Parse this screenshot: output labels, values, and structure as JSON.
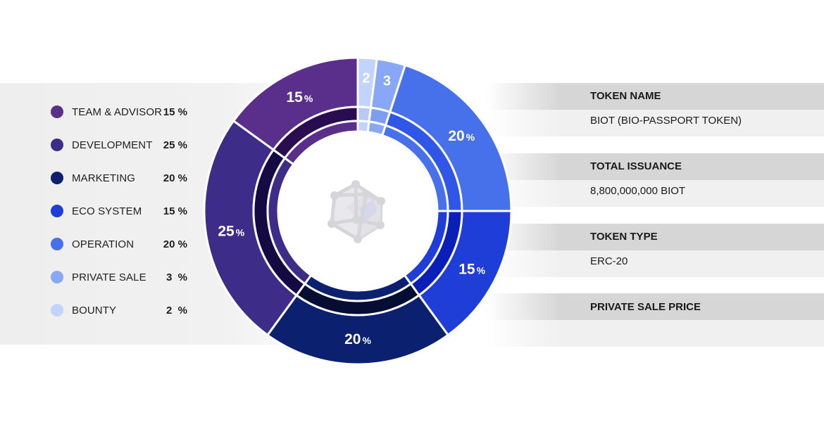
{
  "chart_data": {
    "type": "pie",
    "categories": [
      "BOUNTY",
      "PRIVATE SALE",
      "OPERATION",
      "ECO SYSTEM",
      "MARKETING",
      "DEVELOPMENT",
      "TEAM & ADVISOR"
    ],
    "values": [
      2,
      3,
      20,
      15,
      20,
      25,
      15
    ],
    "slice_labels": [
      "2",
      "3",
      "20",
      "15",
      "20",
      "25",
      "15"
    ],
    "colors": [
      "#c2d4fb",
      "#88a8f5",
      "#4771ea",
      "#1f3ed8",
      "#0b2170",
      "#3d2d89",
      "#5a2f8c"
    ],
    "inner_colors": [
      "#b6c9f7",
      "#7d9ef2",
      "#2f56e6",
      "#0a1eb8",
      "#050d33",
      "#160a45",
      "#2a0d50"
    ],
    "percent_symbol": "%"
  },
  "legend": {
    "items": [
      {
        "label": "TEAM & ADVISOR",
        "pct": "15 %",
        "color": "#5a2f8c"
      },
      {
        "label": "DEVELOPMENT",
        "pct": "25 %",
        "color": "#3d2d89"
      },
      {
        "label": "MARKETING",
        "pct": "20 %",
        "color": "#0b2170"
      },
      {
        "label": "ECO SYSTEM",
        "pct": "15 %",
        "color": "#1f3ed8"
      },
      {
        "label": "OPERATION",
        "pct": "20 %",
        "color": "#4771ea"
      },
      {
        "label": "PRIVATE SALE",
        "pct": "3  %",
        "color": "#88a8f5"
      },
      {
        "label": "BOUNTY",
        "pct": "2  %",
        "color": "#c2d4fb"
      }
    ]
  },
  "token_info": {
    "token_name_label": "TOKEN NAME",
    "token_name_value": "BIOT (BIO-PASSPORT TOKEN)",
    "total_issuance_label": "TOTAL ISSUANCE",
    "total_issuance_value": "8,800,000,000 BIOT",
    "token_type_label": "TOKEN TYPE",
    "token_type_value": "ERC-20",
    "private_sale_price_label": "PRIVATE SALE PRICE"
  },
  "center_icon": "cube-network-icon"
}
